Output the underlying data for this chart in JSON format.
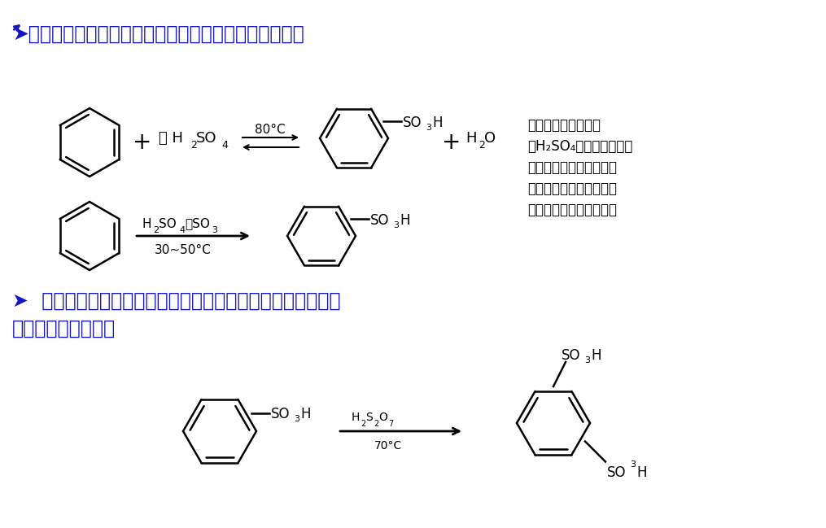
{
  "bg_color": "#ffffff",
  "title1_arrow": "➤",
  "title1_text": "苯与浓硫酸在加热下或与发烟硫酸作用，生成苯磺酸。",
  "title2_text": "➤  若在较高温度下反应，则苯磺酸可进一步生成苯二磺酸，且",
  "title2b_text": "主要生成间位产物。",
  "title_color": "#1414c8",
  "text_color": "#000000",
  "note_lines": [
    "反应可逆，生成的水",
    "使H₂SO₄变稀，碘化速度",
    "变慢，水解速度加快，故",
    "常用发烟硫酸进行碘化，",
    "以减少可逆反应的发生。"
  ]
}
